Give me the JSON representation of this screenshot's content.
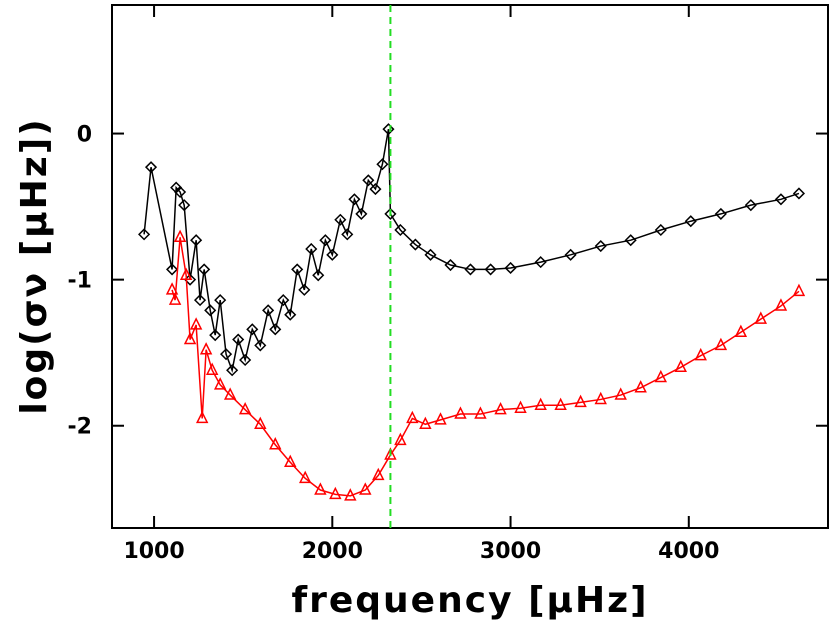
{
  "chart_data": {
    "type": "line",
    "xlabel": "frequency [μHz]",
    "ylabel": "log(σν [μHz])",
    "xlim": [
      764,
      4781
    ],
    "ylim": [
      -2.7,
      0.88
    ],
    "xticks": [
      1000,
      2000,
      3000,
      4000
    ],
    "yticks": [
      -2,
      -1,
      0
    ],
    "vline": {
      "x": 2326,
      "color": "#22dd22"
    },
    "series": [
      {
        "color": "#000000",
        "marker": "diamond",
        "x": [
          944,
          983,
          1101,
          1124,
          1146,
          1169,
          1202,
          1236,
          1258,
          1281,
          1315,
          1343,
          1371,
          1404,
          1438,
          1472,
          1511,
          1551,
          1596,
          1640,
          1680,
          1725,
          1764,
          1803,
          1843,
          1882,
          1921,
          1961,
          2000,
          2045,
          2084,
          2124,
          2163,
          2202,
          2242,
          2281,
          2315,
          2326,
          2382,
          2466,
          2551,
          2663,
          2775,
          2888,
          3000,
          3169,
          3337,
          3506,
          3674,
          3843,
          4011,
          4180,
          4348,
          4517,
          4618
        ],
        "values": [
          -0.69,
          -0.23,
          -0.93,
          -0.37,
          -0.4,
          -0.49,
          -1.0,
          -0.73,
          -1.14,
          -0.93,
          -1.21,
          -1.38,
          -1.14,
          -1.51,
          -1.62,
          -1.41,
          -1.55,
          -1.34,
          -1.45,
          -1.21,
          -1.34,
          -1.14,
          -1.24,
          -0.93,
          -1.07,
          -0.79,
          -0.97,
          -0.73,
          -0.83,
          -0.59,
          -0.69,
          -0.45,
          -0.55,
          -0.32,
          -0.38,
          -0.21,
          0.03,
          -0.55,
          -0.66,
          -0.76,
          -0.83,
          -0.9,
          -0.93,
          -0.93,
          -0.92,
          -0.88,
          -0.83,
          -0.77,
          -0.73,
          -0.66,
          -0.6,
          -0.55,
          -0.49,
          -0.45,
          -0.41
        ]
      },
      {
        "color": "#ff0000",
        "marker": "triangle",
        "x": [
          1101,
          1118,
          1146,
          1180,
          1202,
          1236,
          1270,
          1292,
          1326,
          1371,
          1427,
          1511,
          1596,
          1680,
          1764,
          1848,
          1933,
          2017,
          2101,
          2185,
          2258,
          2326,
          2382,
          2449,
          2522,
          2607,
          2719,
          2831,
          2944,
          3056,
          3169,
          3281,
          3393,
          3506,
          3618,
          3730,
          3843,
          3955,
          4067,
          4180,
          4292,
          4404,
          4517,
          4618
        ],
        "values": [
          -1.07,
          -1.14,
          -0.71,
          -0.97,
          -1.41,
          -1.31,
          -1.95,
          -1.48,
          -1.62,
          -1.72,
          -1.79,
          -1.89,
          -1.99,
          -2.13,
          -2.25,
          -2.36,
          -2.44,
          -2.47,
          -2.48,
          -2.44,
          -2.34,
          -2.2,
          -2.1,
          -1.95,
          -1.99,
          -1.96,
          -1.92,
          -1.92,
          -1.89,
          -1.88,
          -1.86,
          -1.86,
          -1.84,
          -1.82,
          -1.79,
          -1.74,
          -1.67,
          -1.6,
          -1.52,
          -1.45,
          -1.36,
          -1.27,
          -1.18,
          -1.08
        ]
      }
    ]
  }
}
